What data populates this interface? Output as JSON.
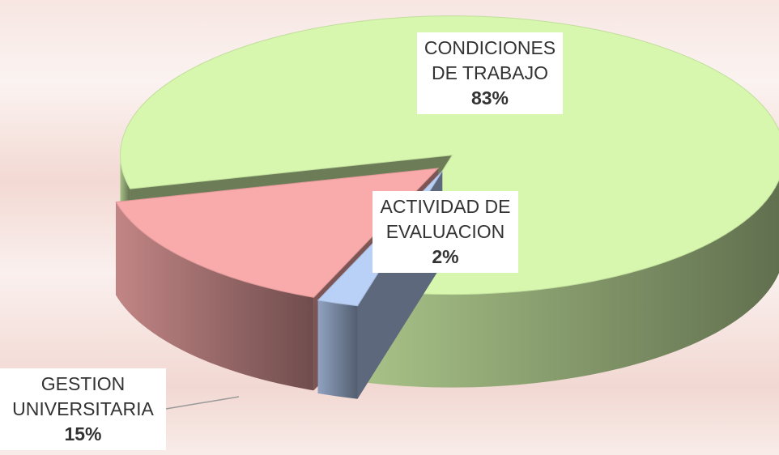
{
  "chart_data": {
    "type": "pie",
    "categories": [
      "CONDICIONES DE TRABAJO",
      "ACTIVIDAD DE EVALUACION",
      "GESTION UNIVERSITARIA"
    ],
    "values": [
      83,
      2,
      15
    ],
    "value_labels": [
      "83%",
      "2%",
      "15%"
    ],
    "colors": [
      "#d6f7ad",
      "#b9d0f7",
      "#f9aaaa"
    ]
  }
}
